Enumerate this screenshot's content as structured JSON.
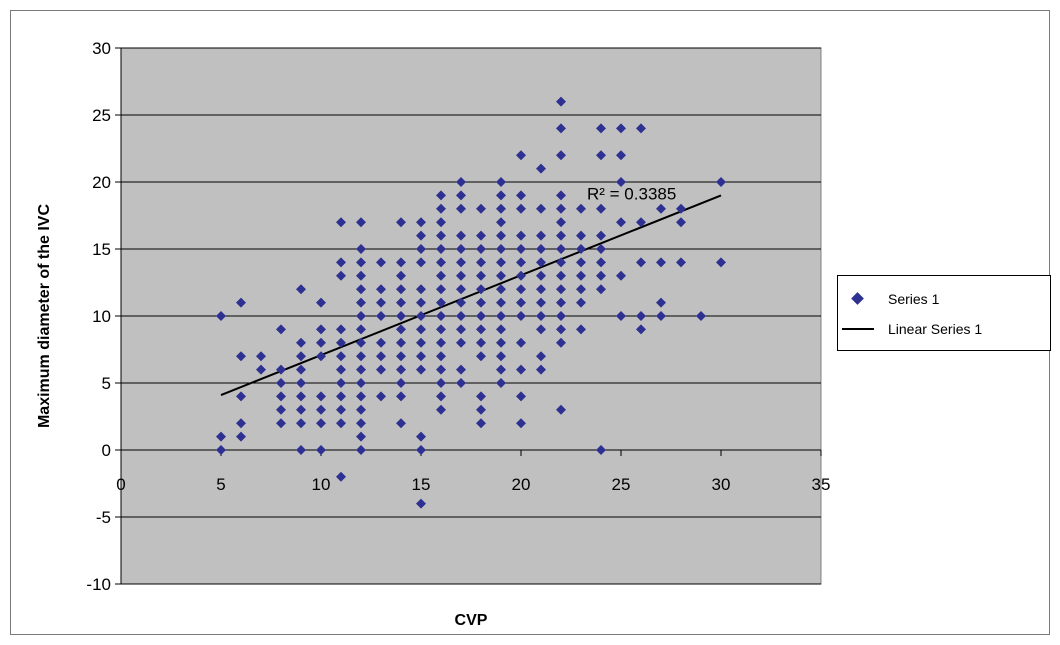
{
  "chart_data": {
    "type": "scatter",
    "title": "",
    "xlabel": "CVP",
    "ylabel": "Maximum diameter of the IVC",
    "xlim": [
      0,
      35
    ],
    "ylim": [
      -10,
      30
    ],
    "xticks": [
      "0",
      "5",
      "10",
      "15",
      "20",
      "25",
      "30",
      "35"
    ],
    "yticks": [
      "-10",
      "-5",
      "0",
      "5",
      "10",
      "15",
      "20",
      "25",
      "30"
    ],
    "grid": "horizontal",
    "plot_background": "#c0c0c0",
    "marker_color": "#2e3192",
    "line_color": "#000000",
    "legend_position": "right",
    "series": [
      {
        "name": "Series 1",
        "points": [
          [
            5,
            10
          ],
          [
            5,
            1
          ],
          [
            5,
            0
          ],
          [
            6,
            11
          ],
          [
            6,
            7
          ],
          [
            6,
            4
          ],
          [
            6,
            2
          ],
          [
            6,
            1
          ],
          [
            7,
            7
          ],
          [
            7,
            6
          ],
          [
            8,
            9
          ],
          [
            8,
            6
          ],
          [
            8,
            5
          ],
          [
            8,
            4
          ],
          [
            8,
            3
          ],
          [
            8,
            2
          ],
          [
            9,
            12
          ],
          [
            9,
            8
          ],
          [
            9,
            7
          ],
          [
            9,
            6
          ],
          [
            9,
            5
          ],
          [
            9,
            4
          ],
          [
            9,
            3
          ],
          [
            9,
            2
          ],
          [
            9,
            0
          ],
          [
            10,
            11
          ],
          [
            10,
            9
          ],
          [
            10,
            8
          ],
          [
            10,
            7
          ],
          [
            10,
            4
          ],
          [
            10,
            3
          ],
          [
            10,
            2
          ],
          [
            10,
            0
          ],
          [
            11,
            17
          ],
          [
            11,
            14
          ],
          [
            11,
            13
          ],
          [
            11,
            9
          ],
          [
            11,
            8
          ],
          [
            11,
            7
          ],
          [
            11,
            6
          ],
          [
            11,
            5
          ],
          [
            11,
            4
          ],
          [
            11,
            3
          ],
          [
            11,
            2
          ],
          [
            11,
            -2
          ],
          [
            12,
            17
          ],
          [
            12,
            15
          ],
          [
            12,
            14
          ],
          [
            12,
            13
          ],
          [
            12,
            12
          ],
          [
            12,
            11
          ],
          [
            12,
            10
          ],
          [
            12,
            9
          ],
          [
            12,
            8
          ],
          [
            12,
            7
          ],
          [
            12,
            6
          ],
          [
            12,
            5
          ],
          [
            12,
            4
          ],
          [
            12,
            3
          ],
          [
            12,
            2
          ],
          [
            12,
            1
          ],
          [
            12,
            0
          ],
          [
            13,
            14
          ],
          [
            13,
            12
          ],
          [
            13,
            11
          ],
          [
            13,
            10
          ],
          [
            13,
            8
          ],
          [
            13,
            7
          ],
          [
            13,
            6
          ],
          [
            13,
            4
          ],
          [
            14,
            17
          ],
          [
            14,
            14
          ],
          [
            14,
            13
          ],
          [
            14,
            12
          ],
          [
            14,
            11
          ],
          [
            14,
            10
          ],
          [
            14,
            9
          ],
          [
            14,
            8
          ],
          [
            14,
            7
          ],
          [
            14,
            6
          ],
          [
            14,
            5
          ],
          [
            14,
            4
          ],
          [
            14,
            2
          ],
          [
            15,
            17
          ],
          [
            15,
            16
          ],
          [
            15,
            15
          ],
          [
            15,
            14
          ],
          [
            15,
            12
          ],
          [
            15,
            11
          ],
          [
            15,
            10
          ],
          [
            15,
            9
          ],
          [
            15,
            8
          ],
          [
            15,
            7
          ],
          [
            15,
            6
          ],
          [
            15,
            1
          ],
          [
            15,
            0
          ],
          [
            15,
            -4
          ],
          [
            16,
            19
          ],
          [
            16,
            18
          ],
          [
            16,
            17
          ],
          [
            16,
            16
          ],
          [
            16,
            15
          ],
          [
            16,
            14
          ],
          [
            16,
            13
          ],
          [
            16,
            12
          ],
          [
            16,
            11
          ],
          [
            16,
            10
          ],
          [
            16,
            9
          ],
          [
            16,
            8
          ],
          [
            16,
            7
          ],
          [
            16,
            6
          ],
          [
            16,
            5
          ],
          [
            16,
            4
          ],
          [
            16,
            3
          ],
          [
            17,
            20
          ],
          [
            17,
            19
          ],
          [
            17,
            18
          ],
          [
            17,
            16
          ],
          [
            17,
            15
          ],
          [
            17,
            14
          ],
          [
            17,
            13
          ],
          [
            17,
            12
          ],
          [
            17,
            11
          ],
          [
            17,
            10
          ],
          [
            17,
            9
          ],
          [
            17,
            8
          ],
          [
            17,
            6
          ],
          [
            17,
            5
          ],
          [
            18,
            18
          ],
          [
            18,
            16
          ],
          [
            18,
            15
          ],
          [
            18,
            14
          ],
          [
            18,
            13
          ],
          [
            18,
            12
          ],
          [
            18,
            11
          ],
          [
            18,
            10
          ],
          [
            18,
            9
          ],
          [
            18,
            8
          ],
          [
            18,
            7
          ],
          [
            18,
            4
          ],
          [
            18,
            3
          ],
          [
            18,
            2
          ],
          [
            19,
            20
          ],
          [
            19,
            19
          ],
          [
            19,
            18
          ],
          [
            19,
            17
          ],
          [
            19,
            16
          ],
          [
            19,
            15
          ],
          [
            19,
            14
          ],
          [
            19,
            13
          ],
          [
            19,
            12
          ],
          [
            19,
            11
          ],
          [
            19,
            10
          ],
          [
            19,
            9
          ],
          [
            19,
            8
          ],
          [
            19,
            7
          ],
          [
            19,
            6
          ],
          [
            19,
            5
          ],
          [
            20,
            22
          ],
          [
            20,
            19
          ],
          [
            20,
            18
          ],
          [
            20,
            16
          ],
          [
            20,
            15
          ],
          [
            20,
            14
          ],
          [
            20,
            13
          ],
          [
            20,
            12
          ],
          [
            20,
            11
          ],
          [
            20,
            10
          ],
          [
            20,
            8
          ],
          [
            20,
            6
          ],
          [
            20,
            4
          ],
          [
            20,
            2
          ],
          [
            21,
            21
          ],
          [
            21,
            18
          ],
          [
            21,
            16
          ],
          [
            21,
            15
          ],
          [
            21,
            14
          ],
          [
            21,
            13
          ],
          [
            21,
            12
          ],
          [
            21,
            11
          ],
          [
            21,
            10
          ],
          [
            21,
            9
          ],
          [
            21,
            7
          ],
          [
            21,
            6
          ],
          [
            22,
            26
          ],
          [
            22,
            24
          ],
          [
            22,
            22
          ],
          [
            22,
            19
          ],
          [
            22,
            18
          ],
          [
            22,
            17
          ],
          [
            22,
            16
          ],
          [
            22,
            15
          ],
          [
            22,
            14
          ],
          [
            22,
            13
          ],
          [
            22,
            12
          ],
          [
            22,
            11
          ],
          [
            22,
            10
          ],
          [
            22,
            9
          ],
          [
            22,
            8
          ],
          [
            22,
            3
          ],
          [
            23,
            18
          ],
          [
            23,
            16
          ],
          [
            23,
            15
          ],
          [
            23,
            14
          ],
          [
            23,
            13
          ],
          [
            23,
            12
          ],
          [
            23,
            11
          ],
          [
            23,
            9
          ],
          [
            24,
            24
          ],
          [
            24,
            22
          ],
          [
            24,
            18
          ],
          [
            24,
            16
          ],
          [
            24,
            15
          ],
          [
            24,
            14
          ],
          [
            24,
            13
          ],
          [
            24,
            12
          ],
          [
            24,
            0
          ],
          [
            25,
            24
          ],
          [
            25,
            22
          ],
          [
            25,
            20
          ],
          [
            25,
            17
          ],
          [
            25,
            13
          ],
          [
            25,
            10
          ],
          [
            26,
            24
          ],
          [
            26,
            17
          ],
          [
            26,
            14
          ],
          [
            26,
            10
          ],
          [
            26,
            9
          ],
          [
            27,
            18
          ],
          [
            27,
            14
          ],
          [
            27,
            11
          ],
          [
            27,
            10
          ],
          [
            28,
            18
          ],
          [
            28,
            17
          ],
          [
            28,
            14
          ],
          [
            29,
            10
          ],
          [
            30,
            20
          ],
          [
            30,
            14
          ]
        ]
      },
      {
        "name": "Linear Series 1",
        "type": "line",
        "points": [
          [
            5,
            4.1
          ],
          [
            30,
            19.0
          ]
        ]
      }
    ],
    "annotations": [
      {
        "text": "R² = 0.3385",
        "x": 23.3,
        "y": 18.7
      }
    ]
  },
  "legend": {
    "items": [
      {
        "label": "Series 1"
      },
      {
        "label": "Linear Series 1"
      }
    ]
  }
}
